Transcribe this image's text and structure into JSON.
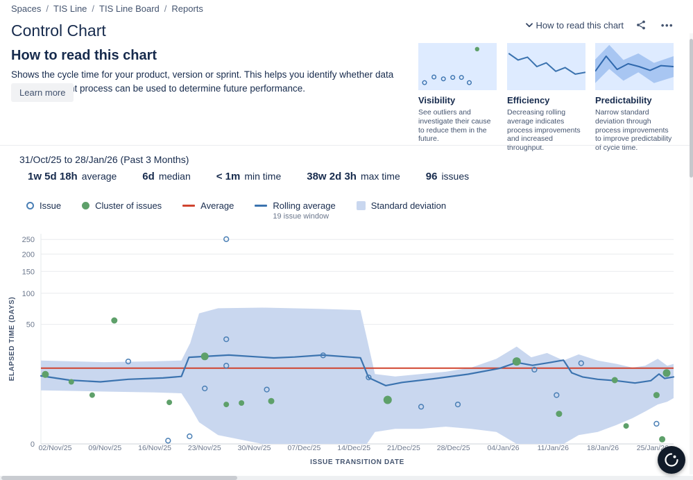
{
  "breadcrumb": {
    "separator": "/",
    "items": [
      "Spaces",
      "TIS Line",
      "TIS Line Board",
      "Reports"
    ]
  },
  "header": {
    "title": "Control Chart",
    "how_to_read_label": "How to read this chart",
    "more_glyph": "•••"
  },
  "help_panel": {
    "title": "How to read this chart",
    "description": "Shows the cycle time for your product, version or sprint. This helps you identify whether data from the current process can be used to determine future performance.",
    "learn_more_label": "Learn more",
    "sections": [
      {
        "title": "Visibility",
        "description": "See outliers and investigate their cause to reduce them in the future.",
        "thumb": {
          "circles": [
            [
              0.08,
              0.84
            ],
            [
              0.2,
              0.72
            ],
            [
              0.32,
              0.76
            ],
            [
              0.44,
              0.73
            ],
            [
              0.55,
              0.73
            ],
            [
              0.65,
              0.84
            ]
          ],
          "dot": [
            0.75,
            0.13
          ]
        }
      },
      {
        "title": "Efficiency",
        "description": "Decreasing rolling average indicates process improvements and increased throughput.",
        "thumb": {
          "points": [
            [
              0.02,
              0.22
            ],
            [
              0.14,
              0.36
            ],
            [
              0.26,
              0.3
            ],
            [
              0.38,
              0.5
            ],
            [
              0.5,
              0.42
            ],
            [
              0.62,
              0.6
            ],
            [
              0.74,
              0.52
            ],
            [
              0.87,
              0.66
            ],
            [
              1,
              0.62
            ]
          ]
        }
      },
      {
        "title": "Predictability",
        "description": "Narrow standard deviation through process improvements to improve predictability of cycle time.",
        "thumb": {
          "band_top": [
            [
              0,
              0.35
            ],
            [
              0.18,
              0.04
            ],
            [
              0.36,
              0.36
            ],
            [
              0.55,
              0.22
            ],
            [
              0.75,
              0.42
            ],
            [
              1,
              0.28
            ]
          ],
          "band_bottom": [
            [
              1,
              0.72
            ],
            [
              0.75,
              0.85
            ],
            [
              0.55,
              0.62
            ],
            [
              0.36,
              0.8
            ],
            [
              0.18,
              0.55
            ],
            [
              0,
              0.85
            ]
          ],
          "line": [
            [
              0,
              0.6
            ],
            [
              0.14,
              0.28
            ],
            [
              0.28,
              0.56
            ],
            [
              0.42,
              0.44
            ],
            [
              0.56,
              0.5
            ],
            [
              0.7,
              0.58
            ],
            [
              0.84,
              0.48
            ],
            [
              1,
              0.5
            ]
          ]
        }
      }
    ]
  },
  "report": {
    "date_range": "31/Oct/25 to 28/Jan/26 (Past 3 Months)",
    "stats": [
      {
        "value": "1w 5d 18h",
        "label": "average"
      },
      {
        "value": "6d",
        "label": "median"
      },
      {
        "value": "< 1m",
        "label": "min time"
      },
      {
        "value": "38w 2d 3h",
        "label": "max time"
      },
      {
        "value": "96",
        "label": "issues"
      }
    ],
    "legend": [
      {
        "label": "Issue"
      },
      {
        "label": "Cluster of issues"
      },
      {
        "label": "Average"
      },
      {
        "label": "Rolling average",
        "sublabel": "19 issue window"
      },
      {
        "label": "Standard deviation"
      }
    ]
  },
  "chart_data": {
    "type": "scatter",
    "title": "Control Chart",
    "xlabel": "ISSUE TRANSITION DATE",
    "ylabel": "ELAPSED TIME (DAYS)",
    "x_ticks": [
      "02/Nov/25",
      "09/Nov/25",
      "16/Nov/25",
      "23/Nov/25",
      "30/Nov/25",
      "07/Dec/25",
      "14/Dec/25",
      "21/Dec/25",
      "28/Dec/25",
      "04/Jan/26",
      "11/Jan/26",
      "18/Jan/26",
      "25/Jan/26"
    ],
    "x_tick_start_fraction": 0.0225,
    "x_tick_step_fraction": 0.0787,
    "y_ticks": [
      0,
      50,
      100,
      150,
      200,
      250
    ],
    "y_scale": "cube-root",
    "ylim": [
      0,
      270
    ],
    "grid": true,
    "average_days": 12.75,
    "rolling_average_points": [
      [
        0.0,
        9.2
      ],
      [
        0.045,
        7.6
      ],
      [
        0.094,
        7.0
      ],
      [
        0.138,
        7.9
      ],
      [
        0.193,
        8.4
      ],
      [
        0.222,
        9.0
      ],
      [
        0.234,
        19.0
      ],
      [
        0.297,
        20.5
      ],
      [
        0.368,
        18.6
      ],
      [
        0.401,
        19.2
      ],
      [
        0.445,
        20.5
      ],
      [
        0.505,
        18.7
      ],
      [
        0.518,
        8.5
      ],
      [
        0.545,
        5.8
      ],
      [
        0.571,
        6.8
      ],
      [
        0.621,
        8.1
      ],
      [
        0.675,
        9.9
      ],
      [
        0.725,
        12.6
      ],
      [
        0.752,
        15.8
      ],
      [
        0.777,
        14.2
      ],
      [
        0.805,
        15.8
      ],
      [
        0.826,
        17.2
      ],
      [
        0.839,
        10.5
      ],
      [
        0.856,
        8.8
      ],
      [
        0.88,
        7.9
      ],
      [
        0.909,
        7.4
      ],
      [
        0.939,
        6.6
      ],
      [
        0.964,
        7.4
      ],
      [
        0.977,
        10.0
      ],
      [
        0.986,
        8.2
      ],
      [
        1.0,
        8.8
      ]
    ],
    "issue_points": [
      [
        0.293,
        251
      ],
      [
        0.293,
        33.5
      ],
      [
        0.138,
        16.4
      ],
      [
        0.201,
        0.001
      ],
      [
        0.235,
        0.013
      ],
      [
        0.293,
        14.0
      ],
      [
        0.259,
        5.0
      ],
      [
        0.357,
        4.7
      ],
      [
        0.446,
        20.3
      ],
      [
        0.518,
        8.6
      ],
      [
        0.601,
        1.5
      ],
      [
        0.659,
        1.8
      ],
      [
        0.78,
        12.0
      ],
      [
        0.815,
        3.4
      ],
      [
        0.854,
        15.4
      ],
      [
        0.973,
        0.24
      ]
    ],
    "cluster_points": [
      [
        0.007,
        9.8,
        5
      ],
      [
        0.048,
        7.0,
        4
      ],
      [
        0.081,
        3.4,
        4
      ],
      [
        0.116,
        55,
        4.5
      ],
      [
        0.203,
        2.1,
        4
      ],
      [
        0.259,
        19.6,
        5.5
      ],
      [
        0.293,
        1.8,
        4
      ],
      [
        0.317,
        2.0,
        4
      ],
      [
        0.364,
        2.3,
        4.5
      ],
      [
        0.548,
        2.5,
        6
      ],
      [
        0.752,
        16.4,
        6
      ],
      [
        0.819,
        0.8,
        4.5
      ],
      [
        0.907,
        7.6,
        4.5
      ],
      [
        0.925,
        0.17,
        4
      ],
      [
        0.973,
        3.4,
        4.5
      ],
      [
        0.982,
        0.003,
        4.5
      ],
      [
        0.989,
        10.4,
        5.5
      ]
    ],
    "std_deviation_band": [
      [
        0,
        17,
        4.5
      ],
      [
        0.1,
        16,
        4.2
      ],
      [
        0.18,
        16.5,
        4.0
      ],
      [
        0.222,
        17,
        3.8
      ],
      [
        0.236,
        30,
        1.5
      ],
      [
        0.25,
        65,
        0.3
      ],
      [
        0.28,
        73,
        0.02
      ],
      [
        0.35,
        74,
        0
      ],
      [
        0.44,
        72,
        0
      ],
      [
        0.505,
        70,
        0
      ],
      [
        0.515,
        35,
        0
      ],
      [
        0.528,
        10,
        0.05
      ],
      [
        0.56,
        9,
        0.1
      ],
      [
        0.6,
        10,
        0.1
      ],
      [
        0.64,
        11,
        0.15
      ],
      [
        0.68,
        13,
        0.1
      ],
      [
        0.72,
        18,
        0.05
      ],
      [
        0.752,
        27,
        0
      ],
      [
        0.775,
        19,
        0
      ],
      [
        0.8,
        22,
        0
      ],
      [
        0.826,
        17,
        0
      ],
      [
        0.85,
        21,
        0.02
      ],
      [
        0.88,
        17,
        0.05
      ],
      [
        0.91,
        15,
        0.2
      ],
      [
        0.935,
        13,
        0.5
      ],
      [
        0.955,
        14,
        1.0
      ],
      [
        0.975,
        18,
        1.8
      ],
      [
        0.99,
        14,
        2.2
      ],
      [
        1.0,
        15,
        2.8
      ]
    ],
    "colors": {
      "issue_stroke": "#4a7fb5",
      "cluster_fill": "#5ea06a",
      "average_line": "#d0432f",
      "rolling_line": "#3b73af",
      "band_fill": "#c9d7ef",
      "grid_line": "#e9ebee",
      "tick_text": "#6b778c",
      "thumb_bg": "#deebff",
      "thumb_band": "#a8c6f2"
    }
  }
}
